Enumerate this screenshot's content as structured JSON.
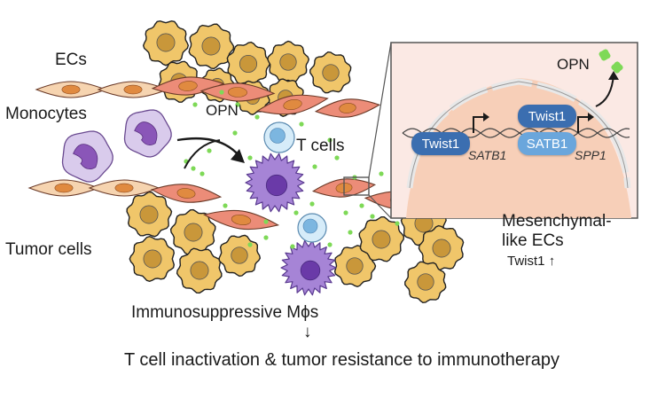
{
  "labels": {
    "ecs": "ECs",
    "monocytes": "Monocytes",
    "opn_center": "OPN",
    "t_cells": "T cells",
    "tumor_cells": "Tumor cells",
    "mesenchymal": "Mesenchymal-",
    "like_ecs": "like ECs",
    "twist1_up": "Twist1",
    "immunosuppressive": "Immunosuppressive Mϕs",
    "down_arrow": "↓",
    "outcome": "T cell inactivation & tumor resistance to immunotherapy"
  },
  "inset": {
    "opn": "OPN",
    "twist1_a": "Twist1",
    "twist1_b": "Twist1",
    "satb1_protein": "SATB1",
    "satb1_gene": "SATB1",
    "spp1_gene": "SPP1"
  },
  "colors": {
    "tumor_fill": "#f0c66a",
    "tumor_nucleus": "#c9973a",
    "ec_tan_fill": "#f6d4b0",
    "ec_red_fill": "#ec8c78",
    "ec_nucleus": "#e08a40",
    "monocyte_fill": "#d9cbec",
    "monocyte_nucleus": "#8a56b8",
    "macrophage_fill": "#a684d6",
    "tcell_fill": "#d6ecf9",
    "tcell_nucleus": "#7cb6e0",
    "opn_dot": "#7ed957",
    "inset_bg": "#fbe9e4",
    "protein_dark": "#3b6eb0",
    "protein_light": "#6aa6dc"
  }
}
